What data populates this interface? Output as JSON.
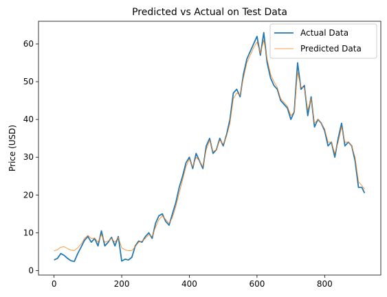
{
  "chart_data": {
    "type": "line",
    "title": "Predicted vs Actual on Test Data",
    "xlabel": "",
    "ylabel": "Price (USD)",
    "xlim": [
      -46,
      966
    ],
    "ylim": [
      -1.2,
      66
    ],
    "xticks": [
      0,
      200,
      400,
      600,
      800
    ],
    "xtick_labels": [
      "0",
      "200",
      "400",
      "600",
      "800"
    ],
    "yticks": [
      0,
      10,
      20,
      30,
      40,
      50,
      60
    ],
    "ytick_labels": [
      "0",
      "10",
      "20",
      "30",
      "40",
      "50",
      "60"
    ],
    "grid": false,
    "legend": "top-right",
    "series": [
      {
        "name": "Actual Data",
        "color": "#1f77b4",
        "x": [
          0,
          10,
          20,
          30,
          40,
          50,
          60,
          70,
          80,
          90,
          100,
          110,
          120,
          130,
          140,
          150,
          160,
          170,
          180,
          190,
          200,
          210,
          220,
          230,
          240,
          250,
          260,
          270,
          280,
          290,
          300,
          310,
          320,
          330,
          340,
          350,
          360,
          370,
          380,
          390,
          400,
          410,
          420,
          430,
          440,
          450,
          460,
          470,
          480,
          490,
          500,
          510,
          520,
          530,
          540,
          550,
          560,
          570,
          580,
          590,
          600,
          610,
          620,
          630,
          640,
          650,
          660,
          670,
          680,
          690,
          700,
          710,
          720,
          730,
          740,
          750,
          760,
          770,
          780,
          790,
          800,
          810,
          820,
          830,
          840,
          850,
          860,
          870,
          880,
          890,
          900,
          910,
          918
        ],
        "values": [
          2.8,
          3.2,
          4.5,
          4.0,
          3.2,
          2.6,
          2.4,
          4.5,
          6.2,
          8.0,
          9.0,
          7.5,
          8.5,
          6.5,
          10.5,
          6.5,
          7.5,
          8.8,
          6.5,
          9.0,
          2.5,
          3.0,
          2.8,
          3.5,
          6.5,
          7.8,
          7.5,
          9.0,
          10.0,
          8.5,
          12.5,
          14.5,
          15.0,
          13.0,
          12.0,
          15.0,
          18.0,
          22.0,
          25.0,
          28.5,
          30.0,
          27.0,
          31.0,
          29.0,
          27.0,
          33.0,
          35.0,
          31.0,
          32.0,
          35.0,
          33.0,
          36.0,
          40.0,
          47.0,
          48.0,
          46.0,
          52.0,
          56.0,
          58.0,
          60.0,
          62.0,
          57.0,
          63.0,
          55.0,
          51.0,
          49.0,
          48.0,
          45.0,
          44.0,
          43.0,
          40.0,
          42.0,
          55.0,
          48.0,
          49.0,
          41.0,
          46.0,
          38.0,
          40.0,
          39.0,
          37.0,
          33.0,
          34.0,
          30.0,
          35.0,
          39.0,
          33.0,
          34.0,
          33.0,
          29.0,
          22.0,
          22.0,
          20.5
        ]
      },
      {
        "name": "Predicted Data",
        "color": "#ff7f0e",
        "x": [
          0,
          10,
          20,
          30,
          40,
          50,
          60,
          70,
          80,
          90,
          100,
          110,
          120,
          130,
          140,
          150,
          160,
          170,
          180,
          190,
          200,
          210,
          220,
          230,
          240,
          250,
          260,
          270,
          280,
          290,
          300,
          310,
          320,
          330,
          340,
          350,
          360,
          370,
          380,
          390,
          400,
          410,
          420,
          430,
          440,
          450,
          460,
          470,
          480,
          490,
          500,
          510,
          520,
          530,
          540,
          550,
          560,
          570,
          580,
          590,
          600,
          610,
          620,
          630,
          640,
          650,
          660,
          670,
          680,
          690,
          700,
          710,
          720,
          730,
          740,
          750,
          760,
          770,
          780,
          790,
          800,
          810,
          820,
          830,
          840,
          850,
          860,
          870,
          880,
          890,
          900,
          910,
          918
        ],
        "values": [
          5.2,
          5.5,
          6.2,
          6.3,
          5.8,
          5.4,
          5.3,
          6.0,
          7.0,
          8.5,
          9.3,
          8.5,
          8.6,
          7.5,
          9.5,
          7.5,
          7.8,
          8.5,
          7.5,
          8.8,
          6.0,
          5.5,
          5.2,
          5.3,
          6.3,
          7.5,
          7.8,
          8.5,
          9.5,
          9.0,
          11.5,
          13.5,
          14.5,
          13.5,
          12.5,
          14.0,
          17.0,
          20.5,
          24.0,
          27.5,
          29.5,
          27.5,
          30.0,
          29.0,
          27.5,
          32.0,
          34.5,
          31.5,
          32.0,
          34.5,
          33.5,
          35.5,
          39.0,
          45.5,
          47.0,
          46.5,
          51.0,
          55.0,
          57.0,
          59.0,
          60.5,
          57.5,
          61.0,
          56.0,
          52.0,
          50.0,
          48.5,
          45.5,
          44.5,
          43.5,
          41.0,
          42.0,
          52.5,
          48.5,
          48.5,
          42.5,
          45.5,
          39.0,
          40.0,
          39.0,
          37.5,
          34.0,
          34.0,
          31.0,
          34.0,
          38.0,
          34.0,
          34.0,
          33.0,
          30.0,
          23.5,
          22.5,
          21.5
        ]
      }
    ]
  }
}
